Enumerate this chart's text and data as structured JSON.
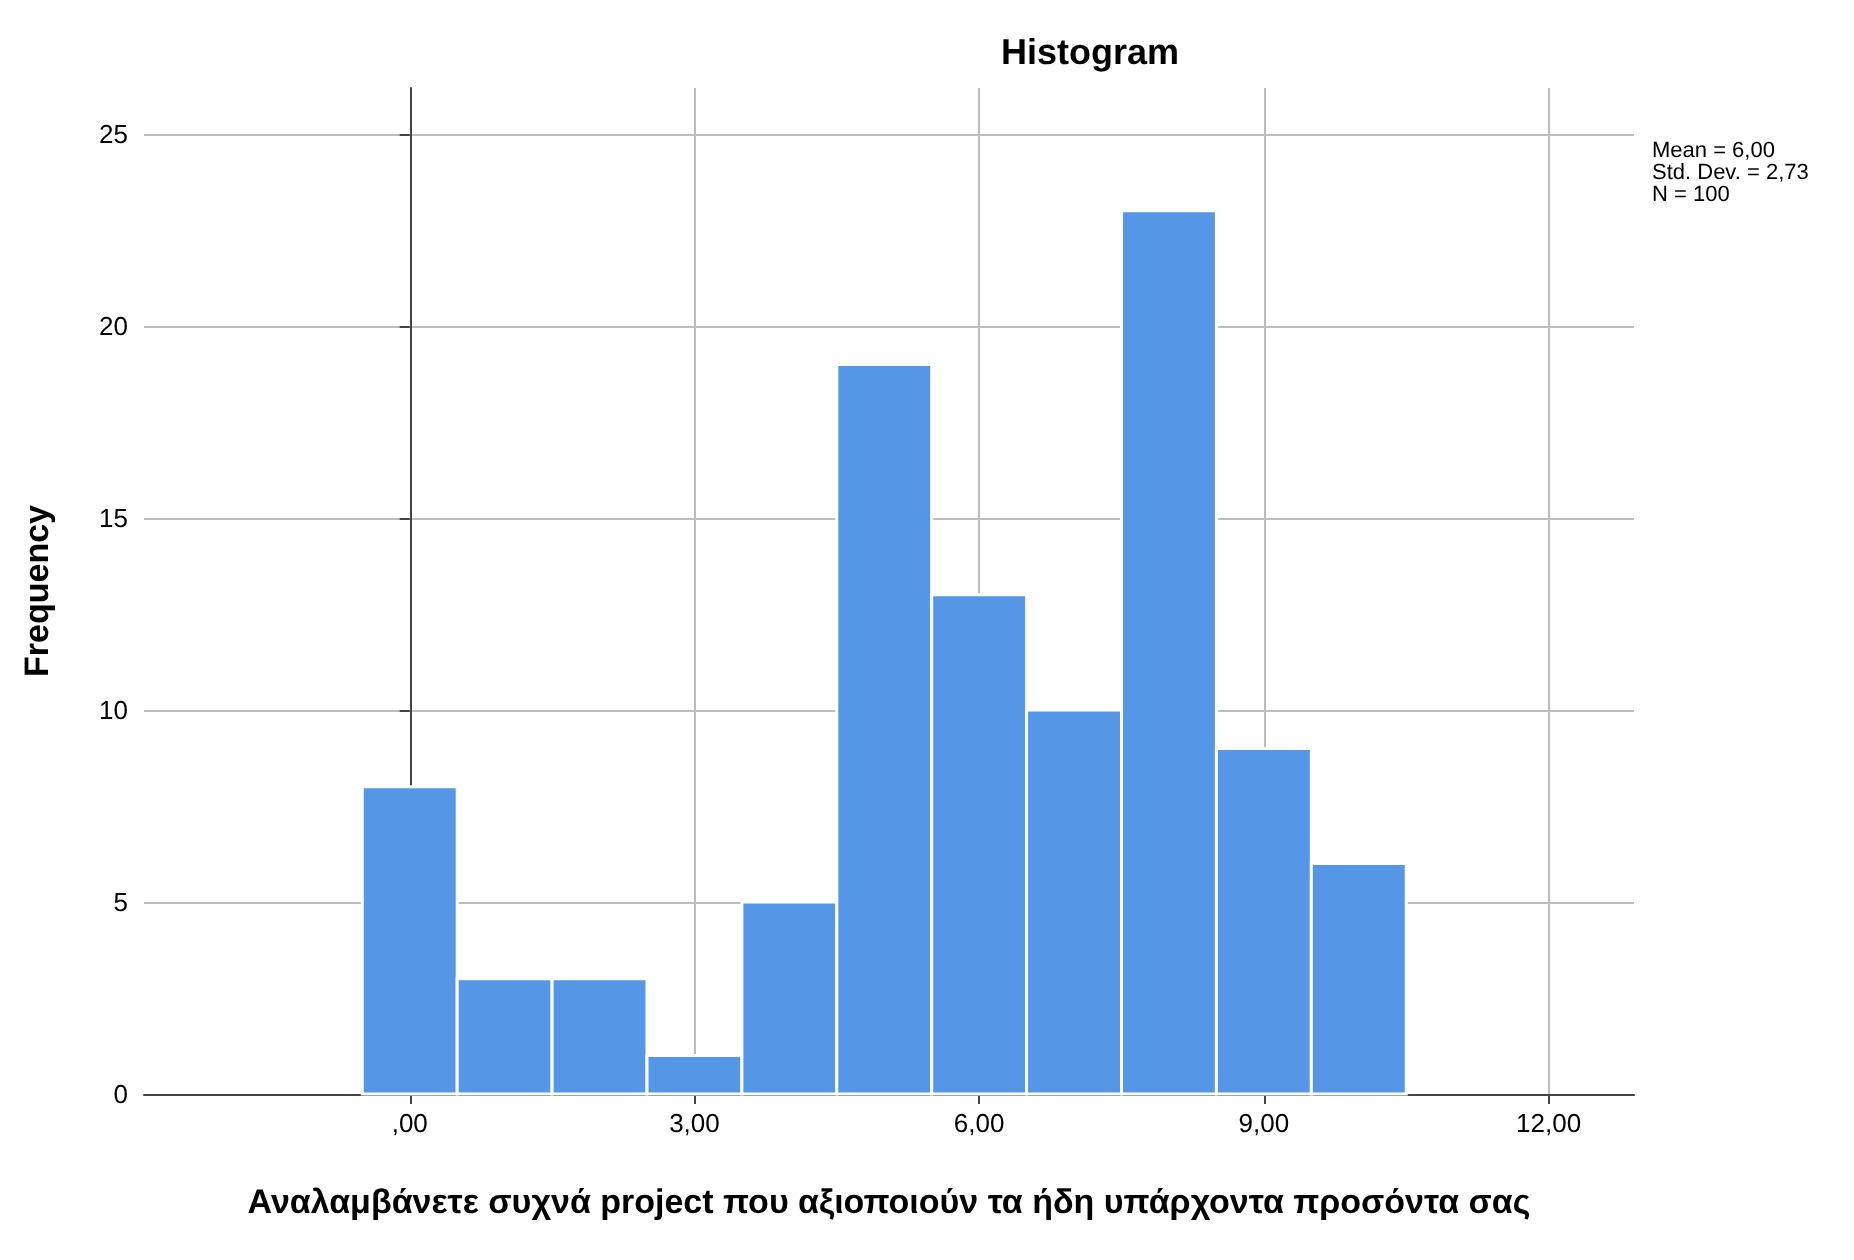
{
  "chart_data": {
    "type": "histogram",
    "title": "Histogram",
    "xlabel": "Αναλαμβάνετε συχνά project που αξιοποιούν τα ήδη υπάρχοντα προσόντα σας",
    "ylabel": "Frequency",
    "bins": [
      -0.5,
      0.5,
      1.5,
      2.5,
      3.5,
      4.5,
      5.5,
      6.5,
      7.5,
      8.5,
      9.5,
      10.5
    ],
    "values": [
      8,
      3,
      3,
      1,
      5,
      19,
      13,
      10,
      23,
      9,
      6
    ],
    "color": "#5596e6",
    "xlim": [
      -2.8,
      12.9
    ],
    "xticks": [
      {
        "value": 0,
        "label": ",00"
      },
      {
        "value": 3,
        "label": "3,00"
      },
      {
        "value": 6,
        "label": "6,00"
      },
      {
        "value": 9,
        "label": "9,00"
      },
      {
        "value": 12,
        "label": "12,00"
      }
    ],
    "ylim": [
      0,
      26.2
    ],
    "yticks": [
      0,
      5,
      10,
      15,
      20,
      25
    ],
    "grid": true,
    "annotations": [
      "Mean = 6,00",
      "Std. Dev. = 2,73",
      "N = 100"
    ]
  }
}
